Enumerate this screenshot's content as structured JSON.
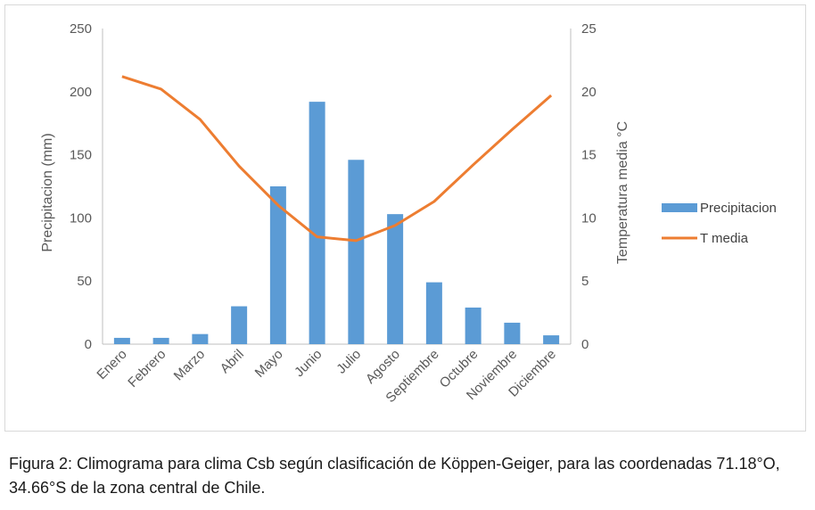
{
  "chart_data": {
    "type": "bar",
    "categories": [
      "Enero",
      "Febrero",
      "Marzo",
      "Abril",
      "Mayo",
      "Junio",
      "Julio",
      "Agosto",
      "Septiembre",
      "Octubre",
      "Noviembre",
      "Diciembre"
    ],
    "series": [
      {
        "name": "Precipitacion",
        "type": "bar",
        "axis": "left",
        "color": "#5b9bd5",
        "values": [
          5,
          5,
          8,
          30,
          125,
          192,
          146,
          103,
          49,
          29,
          17,
          7
        ]
      },
      {
        "name": "T media",
        "type": "line",
        "axis": "right",
        "color": "#ed7d31",
        "values": [
          21.2,
          20.2,
          17.8,
          14.1,
          11.0,
          8.5,
          8.2,
          9.4,
          11.3,
          14.2,
          17.0,
          19.7
        ]
      }
    ],
    "ylabel": "Precipitacion (mm)",
    "ylabel_right": "Temperatura media °C",
    "ylim": [
      0,
      250
    ],
    "ylim_right": [
      0,
      25
    ],
    "yticks": [
      "0",
      "50",
      "100",
      "150",
      "200",
      "250"
    ],
    "yticks_right": [
      "0",
      "5",
      "10",
      "15",
      "20",
      "25"
    ],
    "legend": {
      "position": "right",
      "entries": [
        "Precipitacion",
        "T media"
      ]
    },
    "grid": false
  },
  "caption": "Figura 2: Climograma para clima Csb según clasificación de Köppen-Geiger, para las coordenadas 71.18°O, 34.66°S de la zona central de Chile."
}
